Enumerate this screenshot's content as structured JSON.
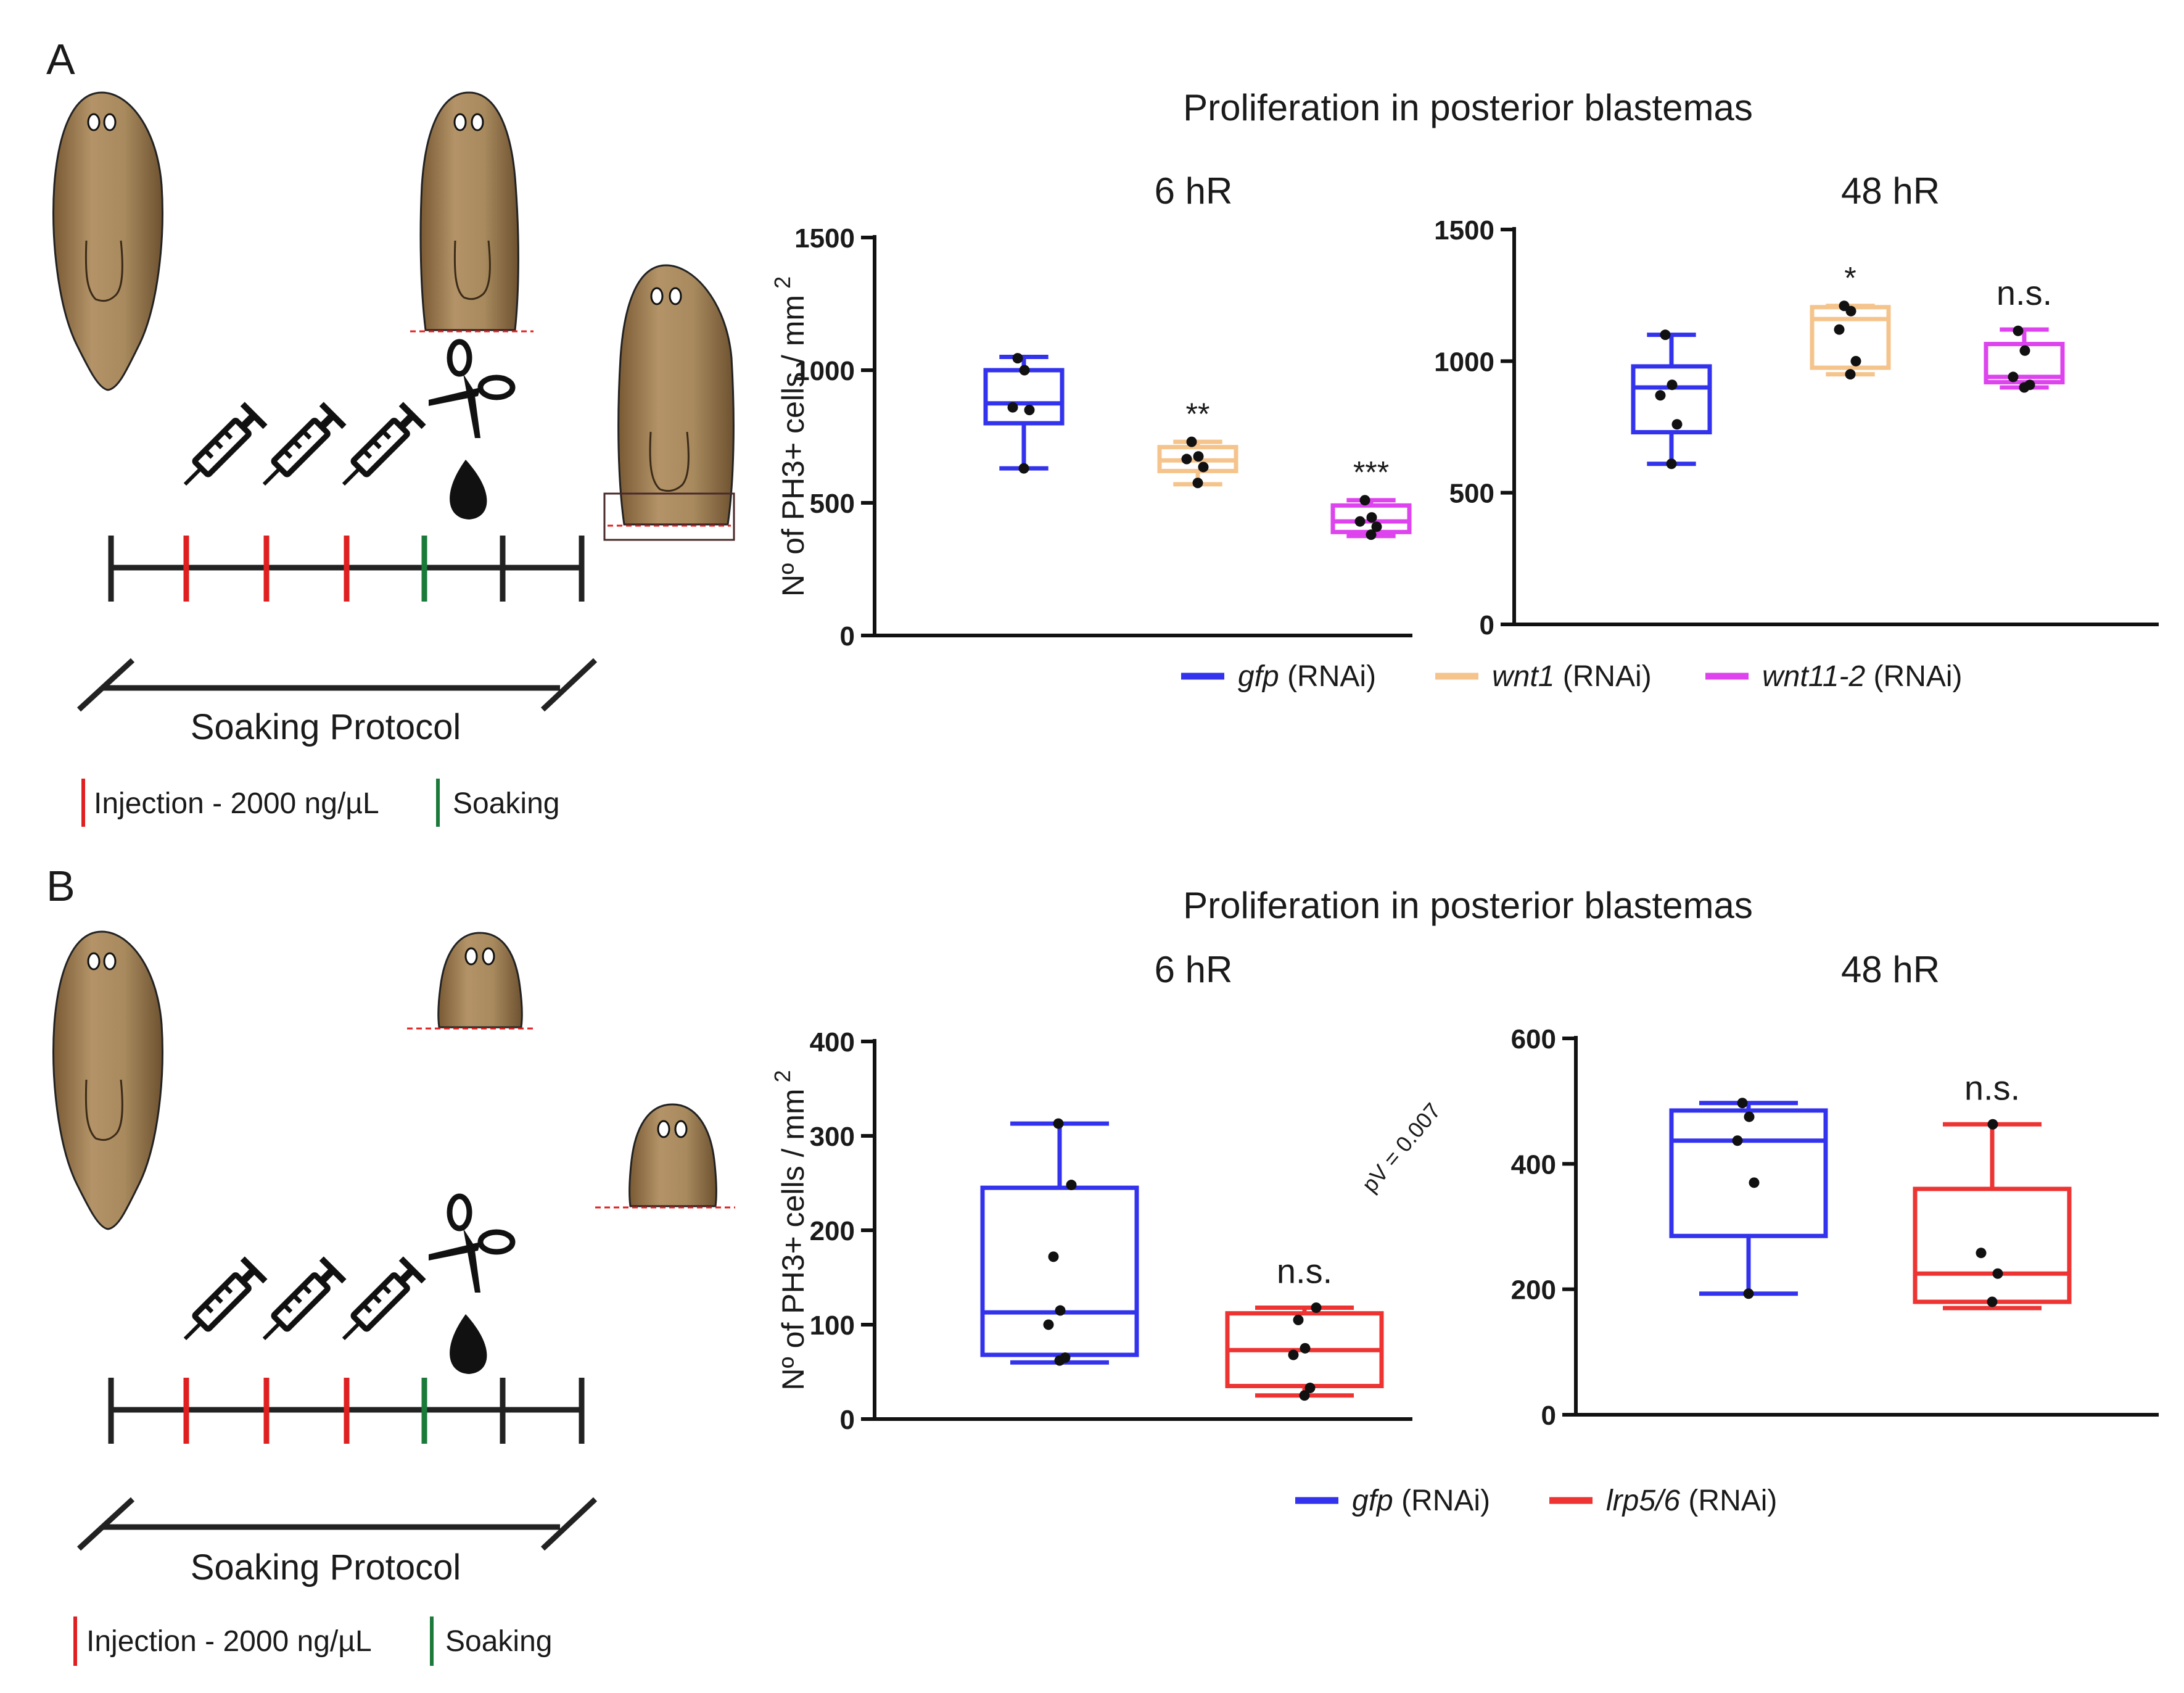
{
  "panels": {
    "A": {
      "letter": "A",
      "protocol_title": "Soaking Protocol",
      "legend_injection": "Injection - 2000 ng/µL",
      "legend_soaking": "Soaking"
    },
    "B": {
      "letter": "B",
      "protocol_title": "Soaking Protocol",
      "legend_injection": "Injection - 2000 ng/µL",
      "legend_soaking": "Soaking"
    }
  },
  "colors": {
    "gfp": "#3333ee",
    "wnt1": "#f5c48c",
    "wnt11_2": "#dd44ee",
    "lrp": "#ee3333",
    "injection": "#e02020",
    "soaking": "#1a7a3a",
    "worm": "#a4835a"
  },
  "chart_data": [
    {
      "id": "A-6hR",
      "type": "box",
      "panel": "A",
      "supertitle": "Proliferation in posterior blastemas",
      "title": "6 hR",
      "ylabel": "Nº of PH3+ cells / mm 2",
      "ylim": [
        0,
        1500
      ],
      "yticks": [
        "0",
        "500",
        "1000",
        "1500"
      ],
      "groups": [
        {
          "name": "gfp (RNAi)",
          "color_key": "gfp",
          "min": 630,
          "q1": 800,
          "median": 875,
          "q3": 1000,
          "max": 1050,
          "points": [
            630,
            850,
            860,
            1000,
            1045
          ],
          "annotation": ""
        },
        {
          "name": "wnt1 (RNAi)",
          "color_key": "wnt1",
          "min": 570,
          "q1": 620,
          "median": 660,
          "q3": 710,
          "max": 730,
          "points": [
            575,
            635,
            665,
            675,
            730
          ],
          "annotation": "**"
        },
        {
          "name": "wnt11-2 (RNAi)",
          "color_key": "wnt11_2",
          "min": 375,
          "q1": 390,
          "median": 430,
          "q3": 490,
          "max": 510,
          "points": [
            380,
            410,
            430,
            445,
            510
          ],
          "annotation": "***"
        }
      ]
    },
    {
      "id": "A-48hR",
      "type": "box",
      "panel": "A",
      "title": "48 hR",
      "ylabel": "",
      "ylim": [
        0,
        1500
      ],
      "yticks": [
        "0",
        "500",
        "1000",
        "1500"
      ],
      "groups": [
        {
          "name": "gfp (RNAi)",
          "color_key": "gfp",
          "min": 610,
          "q1": 730,
          "median": 900,
          "q3": 980,
          "max": 1100,
          "points": [
            610,
            760,
            870,
            910,
            1100
          ],
          "annotation": ""
        },
        {
          "name": "wnt1 (RNAi)",
          "color_key": "wnt1",
          "min": 950,
          "q1": 975,
          "median": 1160,
          "q3": 1205,
          "max": 1210,
          "points": [
            950,
            1000,
            1120,
            1190,
            1210
          ],
          "annotation": "*"
        },
        {
          "name": "wnt11-2 (RNAi)",
          "color_key": "wnt11_2",
          "min": 900,
          "q1": 920,
          "median": 940,
          "q3": 1065,
          "max": 1120,
          "points": [
            900,
            910,
            940,
            1040,
            1115
          ],
          "annotation": "n.s."
        }
      ]
    },
    {
      "id": "B-6hR",
      "type": "box",
      "panel": "B",
      "supertitle": "Proliferation in posterior blastemas",
      "title": "6 hR",
      "ylabel": "Nº of PH3+ cells / mm 2",
      "ylim": [
        0,
        400
      ],
      "yticks": [
        "0",
        "100",
        "200",
        "300",
        "400"
      ],
      "pvalue_note": "pV = 0.007",
      "groups": [
        {
          "name": "gfp (RNAi)",
          "color_key": "gfp",
          "min": 60,
          "q1": 68,
          "median": 113,
          "q3": 245,
          "max": 313,
          "points": [
            62,
            65,
            100,
            115,
            172,
            248,
            313
          ],
          "annotation": ""
        },
        {
          "name": "lrp5/6 (RNAi)",
          "color_key": "lrp",
          "min": 25,
          "q1": 35,
          "median": 73,
          "q3": 112,
          "max": 118,
          "points": [
            25,
            33,
            68,
            75,
            105,
            118
          ],
          "annotation": "n.s."
        }
      ]
    },
    {
      "id": "B-48hR",
      "type": "box",
      "panel": "B",
      "title": "48 hR",
      "ylabel": "",
      "ylim": [
        0,
        600
      ],
      "yticks": [
        "0",
        "200",
        "400",
        "600"
      ],
      "groups": [
        {
          "name": "gfp (RNAi)",
          "color_key": "gfp",
          "min": 193,
          "q1": 285,
          "median": 437,
          "q3": 485,
          "max": 497,
          "points": [
            193,
            370,
            437,
            475,
            497
          ],
          "annotation": ""
        },
        {
          "name": "lrp5/6 (RNAi)",
          "color_key": "lrp",
          "min": 170,
          "q1": 180,
          "median": 225,
          "q3": 360,
          "max": 463,
          "points": [
            180,
            225,
            258,
            463
          ],
          "annotation": "n.s."
        }
      ]
    }
  ],
  "legends": {
    "A": [
      {
        "gene": "gfp",
        "suffix": " (RNAi)",
        "color_key": "gfp"
      },
      {
        "gene": "wnt1",
        "suffix": " (RNAi)",
        "color_key": "wnt1"
      },
      {
        "gene": "wnt11-2",
        "suffix": " (RNAi)",
        "color_key": "wnt11_2"
      }
    ],
    "B": [
      {
        "gene": "gfp",
        "suffix": " (RNAi)",
        "color_key": "gfp"
      },
      {
        "gene": "lrp5/6",
        "suffix": " (RNAi)",
        "color_key": "lrp"
      }
    ]
  }
}
